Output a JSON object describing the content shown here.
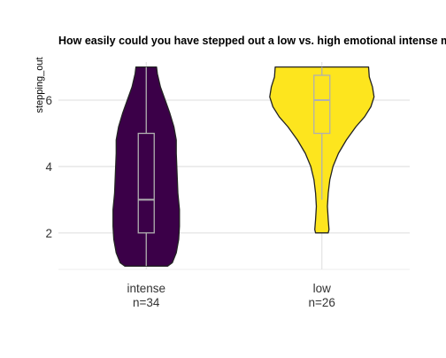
{
  "chart_data": {
    "type": "violin",
    "title": "How easily could you have stepped out a low vs. high emotional intense mind-wandering episode?",
    "xlabel": "",
    "ylabel": "stepping_out",
    "ylim": [
      0.9,
      7.15
    ],
    "yticks": [
      2,
      4,
      6
    ],
    "grid": true,
    "colors": {
      "grid": "#dedede",
      "outline": "#222222",
      "box_line": "#b0b0b0"
    },
    "groups": [
      {
        "category": "intense",
        "count_label": "n=34",
        "fill": "#3b0048",
        "range": [
          1,
          7
        ],
        "box": {
          "q1": 2,
          "median": 3,
          "q3": 5,
          "whisker_low": 1,
          "whisker_high": 7
        },
        "density": [
          {
            "y": 1.0,
            "w": 0.27
          },
          {
            "y": 1.1,
            "w": 0.33
          },
          {
            "y": 1.4,
            "w": 0.38
          },
          {
            "y": 1.8,
            "w": 0.41
          },
          {
            "y": 2.2,
            "w": 0.42
          },
          {
            "y": 2.7,
            "w": 0.42
          },
          {
            "y": 3.2,
            "w": 0.4
          },
          {
            "y": 3.8,
            "w": 0.39
          },
          {
            "y": 4.4,
            "w": 0.38
          },
          {
            "y": 4.8,
            "w": 0.38
          },
          {
            "y": 5.2,
            "w": 0.35
          },
          {
            "y": 5.6,
            "w": 0.3
          },
          {
            "y": 6.0,
            "w": 0.24
          },
          {
            "y": 6.4,
            "w": 0.18
          },
          {
            "y": 6.8,
            "w": 0.14
          },
          {
            "y": 7.0,
            "w": 0.13
          }
        ]
      },
      {
        "category": "low",
        "count_label": "n=26",
        "fill": "#fde51e",
        "range": [
          2,
          7
        ],
        "box": {
          "q1": 5,
          "median": 6,
          "q3": 6.75,
          "whisker_low": 3,
          "whisker_high": 7
        },
        "density": [
          {
            "y": 2.0,
            "w": 0.08
          },
          {
            "y": 2.1,
            "w": 0.09
          },
          {
            "y": 2.4,
            "w": 0.08
          },
          {
            "y": 2.8,
            "w": 0.07
          },
          {
            "y": 3.2,
            "w": 0.08
          },
          {
            "y": 3.6,
            "w": 0.1
          },
          {
            "y": 4.0,
            "w": 0.14
          },
          {
            "y": 4.4,
            "w": 0.21
          },
          {
            "y": 4.8,
            "w": 0.31
          },
          {
            "y": 5.2,
            "w": 0.43
          },
          {
            "y": 5.5,
            "w": 0.54
          },
          {
            "y": 5.8,
            "w": 0.62
          },
          {
            "y": 6.1,
            "w": 0.66
          },
          {
            "y": 6.4,
            "w": 0.64
          },
          {
            "y": 6.7,
            "w": 0.6
          },
          {
            "y": 7.0,
            "w": 0.59
          }
        ]
      }
    ]
  }
}
